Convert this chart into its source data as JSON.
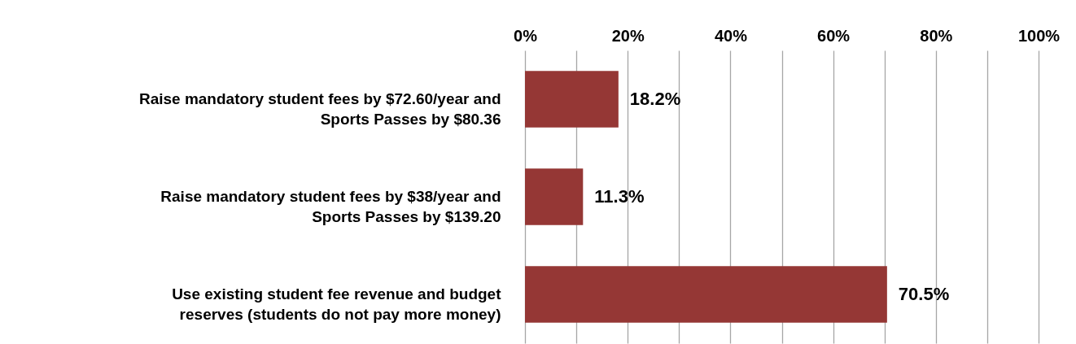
{
  "chart_data": {
    "type": "bar",
    "orientation": "horizontal",
    "categories": [
      "Raise mandatory student fees by $72.60/year and Sports Passes by $80.36",
      "Raise mandatory student fees by $38/year and Sports Passes by $139.20",
      "Use existing student fee revenue and budget reserves (students do not pay more money)"
    ],
    "values": [
      18.2,
      11.3,
      70.5
    ],
    "value_labels": [
      "18.2%",
      "11.3%",
      "70.5%"
    ],
    "color": "#953735",
    "xlim": [
      0,
      100
    ],
    "xticks": [
      {
        "value": 0,
        "label": "0%"
      },
      {
        "value": 10,
        "label": null
      },
      {
        "value": 20,
        "label": "20%"
      },
      {
        "value": 30,
        "label": null
      },
      {
        "value": 40,
        "label": "40%"
      },
      {
        "value": 50,
        "label": null
      },
      {
        "value": 60,
        "label": "60%"
      },
      {
        "value": 70,
        "label": null
      },
      {
        "value": 80,
        "label": "80%"
      },
      {
        "value": 90,
        "label": null
      },
      {
        "value": 100,
        "label": "100%"
      }
    ],
    "grid": "x"
  }
}
